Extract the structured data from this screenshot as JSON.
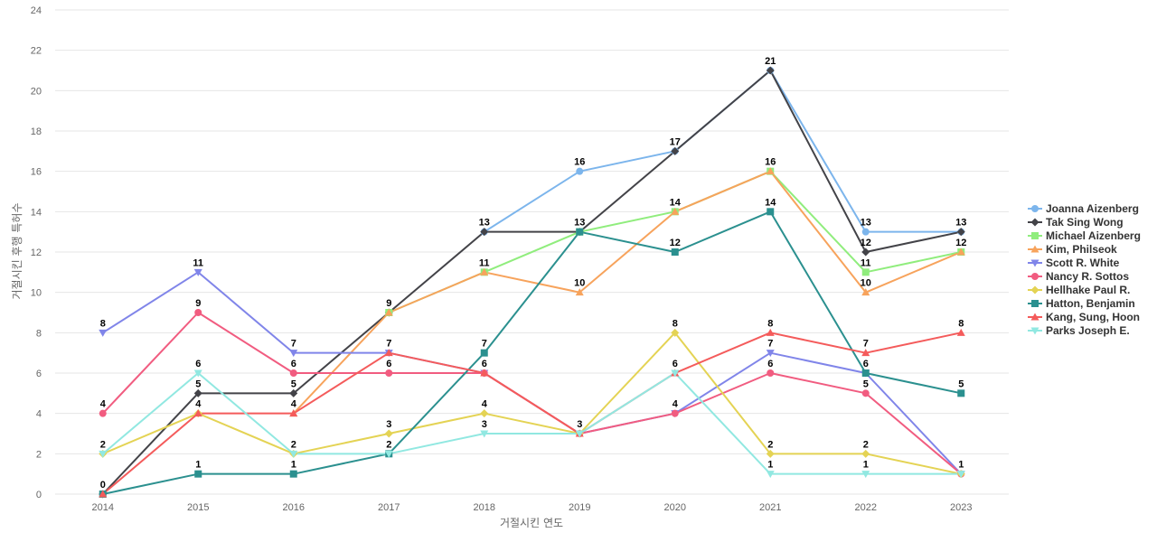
{
  "chart_data": {
    "type": "line",
    "xlabel": "거절시킨 연도",
    "ylabel": "거절시킨 후행 특허수",
    "ylim": [
      0,
      24
    ],
    "yticks": [
      0,
      2,
      4,
      6,
      8,
      10,
      12,
      14,
      16,
      18,
      20,
      22,
      24
    ],
    "categories": [
      "2014",
      "2015",
      "2016",
      "2017",
      "2018",
      "2019",
      "2020",
      "2021",
      "2022",
      "2023"
    ],
    "grid": true,
    "legend_position": "right",
    "series": [
      {
        "name": "Joanna Aizenberg",
        "color": "#7cb5ec",
        "marker": "circle",
        "values": [
          null,
          null,
          null,
          null,
          13,
          16,
          17,
          21,
          13,
          13
        ]
      },
      {
        "name": "Tak Sing Wong",
        "color": "#434348",
        "marker": "diamond",
        "values": [
          0,
          5,
          5,
          9,
          13,
          13,
          17,
          21,
          12,
          13
        ]
      },
      {
        "name": "Michael Aizenberg",
        "color": "#90ed7d",
        "marker": "square",
        "values": [
          null,
          null,
          null,
          9,
          11,
          13,
          14,
          16,
          11,
          12
        ]
      },
      {
        "name": "Kim, Philseok",
        "color": "#f7a35c",
        "marker": "triangle",
        "values": [
          null,
          null,
          4,
          9,
          11,
          10,
          14,
          16,
          10,
          12
        ]
      },
      {
        "name": "Scott R. White",
        "color": "#8085e9",
        "marker": "triangle-down",
        "values": [
          8,
          11,
          7,
          7,
          6,
          3,
          4,
          7,
          6,
          1
        ]
      },
      {
        "name": "Nancy R. Sottos",
        "color": "#f15c80",
        "marker": "circle",
        "values": [
          4,
          9,
          6,
          6,
          6,
          3,
          4,
          6,
          5,
          1
        ]
      },
      {
        "name": "Hellhake Paul R.",
        "color": "#e4d354",
        "marker": "diamond",
        "values": [
          2,
          4,
          2,
          3,
          4,
          3,
          8,
          2,
          2,
          1
        ]
      },
      {
        "name": "Hatton, Benjamin",
        "color": "#2b908f",
        "marker": "square",
        "values": [
          0,
          1,
          1,
          2,
          7,
          13,
          12,
          14,
          6,
          5
        ]
      },
      {
        "name": "Kang, Sung, Hoon",
        "color": "#f45b5b",
        "marker": "triangle",
        "values": [
          0,
          4,
          4,
          7,
          6,
          3,
          6,
          8,
          7,
          8
        ]
      },
      {
        "name": "Parks Joseph E.",
        "color": "#91e8e1",
        "marker": "triangle-down",
        "values": [
          2,
          6,
          2,
          2,
          3,
          3,
          6,
          1,
          1,
          1
        ]
      }
    ],
    "data_labels": [
      {
        "x": "2014",
        "y": 8,
        "text": "8"
      },
      {
        "x": "2014",
        "y": 4,
        "text": "4"
      },
      {
        "x": "2014",
        "y": 2,
        "text": "2"
      },
      {
        "x": "2014",
        "y": 0,
        "text": "0"
      },
      {
        "x": "2015",
        "y": 11,
        "text": "11"
      },
      {
        "x": "2015",
        "y": 9,
        "text": "9"
      },
      {
        "x": "2015",
        "y": 6,
        "text": "6"
      },
      {
        "x": "2015",
        "y": 5,
        "text": "5"
      },
      {
        "x": "2015",
        "y": 4,
        "text": "4"
      },
      {
        "x": "2015",
        "y": 1,
        "text": "1"
      },
      {
        "x": "2016",
        "y": 7,
        "text": "7"
      },
      {
        "x": "2016",
        "y": 6,
        "text": "6"
      },
      {
        "x": "2016",
        "y": 5,
        "text": "5"
      },
      {
        "x": "2016",
        "y": 4,
        "text": "4"
      },
      {
        "x": "2016",
        "y": 2,
        "text": "2"
      },
      {
        "x": "2016",
        "y": 1,
        "text": "1"
      },
      {
        "x": "2017",
        "y": 9,
        "text": "9"
      },
      {
        "x": "2017",
        "y": 7,
        "text": "7"
      },
      {
        "x": "2017",
        "y": 6,
        "text": "6"
      },
      {
        "x": "2017",
        "y": 3,
        "text": "3"
      },
      {
        "x": "2017",
        "y": 2,
        "text": "2"
      },
      {
        "x": "2018",
        "y": 13,
        "text": "13"
      },
      {
        "x": "2018",
        "y": 11,
        "text": "11"
      },
      {
        "x": "2018",
        "y": 7,
        "text": "7"
      },
      {
        "x": "2018",
        "y": 6,
        "text": "6"
      },
      {
        "x": "2018",
        "y": 4,
        "text": "4"
      },
      {
        "x": "2018",
        "y": 3,
        "text": "3"
      },
      {
        "x": "2019",
        "y": 16,
        "text": "16"
      },
      {
        "x": "2019",
        "y": 13,
        "text": "13"
      },
      {
        "x": "2019",
        "y": 10,
        "text": "10"
      },
      {
        "x": "2019",
        "y": 3,
        "text": "3"
      },
      {
        "x": "2020",
        "y": 17,
        "text": "17"
      },
      {
        "x": "2020",
        "y": 14,
        "text": "14"
      },
      {
        "x": "2020",
        "y": 12,
        "text": "12"
      },
      {
        "x": "2020",
        "y": 8,
        "text": "8"
      },
      {
        "x": "2020",
        "y": 6,
        "text": "6"
      },
      {
        "x": "2020",
        "y": 4,
        "text": "4"
      },
      {
        "x": "2021",
        "y": 21,
        "text": "21"
      },
      {
        "x": "2021",
        "y": 16,
        "text": "16"
      },
      {
        "x": "2021",
        "y": 14,
        "text": "14"
      },
      {
        "x": "2021",
        "y": 8,
        "text": "8"
      },
      {
        "x": "2021",
        "y": 7,
        "text": "7"
      },
      {
        "x": "2021",
        "y": 6,
        "text": "6"
      },
      {
        "x": "2021",
        "y": 2,
        "text": "2"
      },
      {
        "x": "2021",
        "y": 1,
        "text": "1"
      },
      {
        "x": "2022",
        "y": 13,
        "text": "13"
      },
      {
        "x": "2022",
        "y": 12,
        "text": "12"
      },
      {
        "x": "2022",
        "y": 11,
        "text": "11"
      },
      {
        "x": "2022",
        "y": 10,
        "text": "10"
      },
      {
        "x": "2022",
        "y": 7,
        "text": "7"
      },
      {
        "x": "2022",
        "y": 6,
        "text": "6"
      },
      {
        "x": "2022",
        "y": 5,
        "text": "5"
      },
      {
        "x": "2022",
        "y": 2,
        "text": "2"
      },
      {
        "x": "2022",
        "y": 1,
        "text": "1"
      },
      {
        "x": "2023",
        "y": 13,
        "text": "13"
      },
      {
        "x": "2023",
        "y": 12,
        "text": "12"
      },
      {
        "x": "2023",
        "y": 8,
        "text": "8"
      },
      {
        "x": "2023",
        "y": 5,
        "text": "5"
      },
      {
        "x": "2023",
        "y": 1,
        "text": "1"
      }
    ]
  }
}
